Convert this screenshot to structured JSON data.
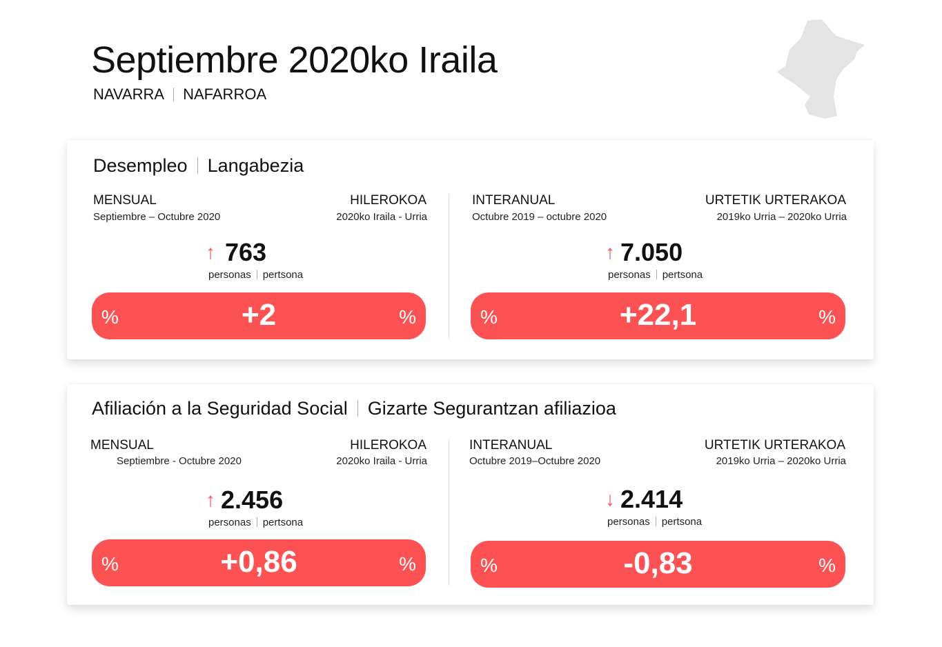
{
  "header": {
    "title": "Septiembre 2020ko Iraila",
    "region_es": "NAVARRA",
    "region_eu": "NAFARROA",
    "map_icon": "navarra-map-silhouette",
    "map_color": "#e4e4e4"
  },
  "accent_color": "#fd5253",
  "cards": [
    {
      "title_es": "Desempleo",
      "title_eu": "Langabezia",
      "monthly": {
        "label_es": "MENSUAL",
        "period_es": "Septiembre – Octubre 2020",
        "label_eu": "HILEROKOA",
        "period_eu": "2020ko Iraila - Urria",
        "trend": "up",
        "arrow": "↑",
        "value": "763",
        "unit_es": "personas",
        "unit_eu": "pertsona",
        "percent_sign": "%",
        "percent": "+2"
      },
      "yearly": {
        "label_es": "INTERANUAL",
        "period_es": "Octubre 2019 – octubre 2020",
        "label_eu": "URTETIK URTERAKOA",
        "period_eu": "2019ko Urria – 2020ko Urria",
        "trend": "up",
        "arrow": "↑",
        "value": "7.050",
        "unit_es": "personas",
        "unit_eu": "pertsona",
        "percent_sign": "%",
        "percent": "+22,1"
      }
    },
    {
      "title_es": "Afiliación a la Seguridad Social",
      "title_eu": "Gizarte Segurantzan afiliazioa",
      "monthly": {
        "label_es": "MENSUAL",
        "period_es": "Septiembre - Octubre 2020",
        "label_eu": "HILEROKOA",
        "period_eu": "2020ko Iraila - Urria",
        "trend": "up",
        "arrow": "↑",
        "value": "2.456",
        "unit_es": "personas",
        "unit_eu": "pertsona",
        "percent_sign": "%",
        "percent": "+0,86"
      },
      "yearly": {
        "label_es": "INTERANUAL",
        "period_es": "Octubre 2019–Octubre 2020",
        "label_eu": "URTETIK URTERAKOA",
        "period_eu": "2019ko Urria – 2020ko Urria",
        "trend": "down",
        "arrow": "↓",
        "value": "2.414",
        "unit_es": "personas",
        "unit_eu": "pertsona",
        "percent_sign": "%",
        "percent": "-0,83"
      }
    }
  ]
}
